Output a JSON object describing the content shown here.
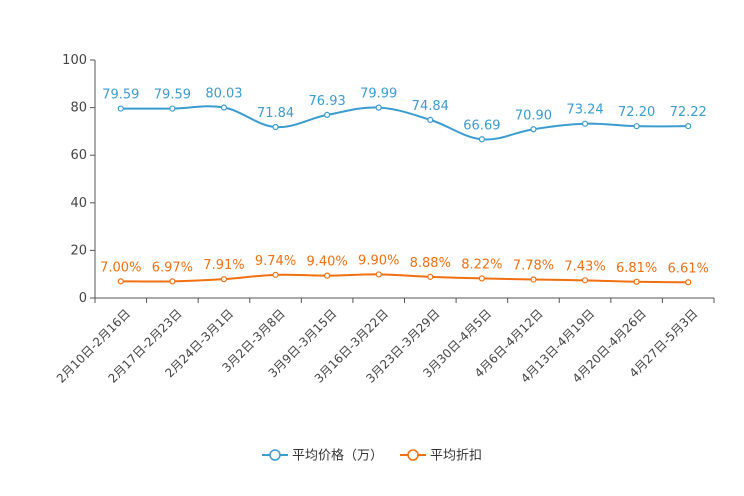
{
  "chart_data": {
    "type": "line",
    "title": "",
    "xlabel": "",
    "ylabel": "",
    "ylim": [
      0,
      100
    ],
    "yticks": [
      0,
      20,
      40,
      60,
      80,
      100
    ],
    "grid": false,
    "legend_position": "bottom-center",
    "categories": [
      "2月10日-2月16日",
      "2月17日-2月23日",
      "2月24日-3月1日",
      "3月2日-3月8日",
      "3月9日-3月15日",
      "3月16日-3月22日",
      "3月23日-3月29日",
      "3月30日-4月5日",
      "4月6日-4月12日",
      "4月13日-4月19日",
      "4月20日-4月26日",
      "4月27日-5月3日"
    ],
    "series": [
      {
        "name": "平均价格（万）",
        "color": "#3a9ccf",
        "values": [
          79.59,
          79.59,
          80.03,
          71.84,
          76.93,
          79.99,
          74.84,
          66.69,
          70.9,
          73.24,
          72.2,
          72.22
        ],
        "labels": [
          "79.59",
          "79.59",
          "80.03",
          "71.84",
          "76.93",
          "79.99",
          "74.84",
          "66.69",
          "70.90",
          "73.24",
          "72.20",
          "72.22"
        ]
      },
      {
        "name": "平均折扣",
        "color": "#f07012",
        "unit": "%",
        "values": [
          7.0,
          6.97,
          7.91,
          9.74,
          9.4,
          9.9,
          8.88,
          8.22,
          7.78,
          7.43,
          6.81,
          6.61
        ],
        "labels": [
          "7.00%",
          "6.97%",
          "7.91%",
          "9.74%",
          "9.40%",
          "9.90%",
          "8.88%",
          "8.22%",
          "7.78%",
          "7.43%",
          "6.81%",
          "6.61%"
        ]
      }
    ]
  }
}
